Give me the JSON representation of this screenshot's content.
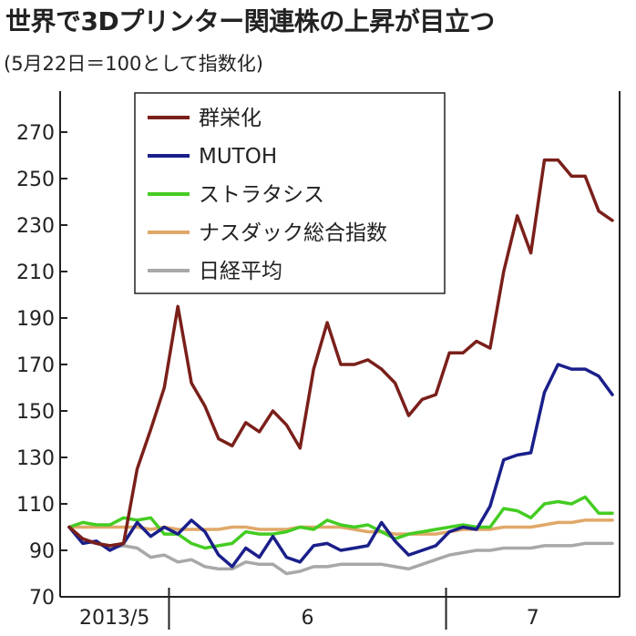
{
  "chart_data": {
    "type": "line",
    "title": "世界で3Dプリンター関連株の上昇が目立つ",
    "subtitle": "(5月22日＝100として指数化)",
    "xlabel": "",
    "ylabel": "",
    "ylim": [
      70,
      270
    ],
    "yticks": [
      70,
      90,
      110,
      130,
      150,
      170,
      190,
      210,
      230,
      250,
      270
    ],
    "x_period_labels": [
      "2013/5",
      "6",
      "7"
    ],
    "x_period_boundaries": [
      9,
      34
    ],
    "x_count": 50,
    "grid": false,
    "legend_position": "top-center",
    "series": [
      {
        "name": "群栄化",
        "color": "#7a1f1a",
        "values": [
          100,
          95,
          93,
          92,
          93,
          125,
          142,
          160,
          195,
          162,
          152,
          138,
          135,
          145,
          141,
          150,
          144,
          134,
          168,
          188,
          170,
          170,
          172,
          168,
          162,
          148,
          155,
          157,
          175,
          175,
          180,
          177,
          210,
          234,
          218,
          258,
          258,
          251,
          251,
          236,
          232
        ]
      },
      {
        "name": "MUTOH",
        "color": "#1a1f8a",
        "values": [
          100,
          93,
          94,
          90,
          93,
          102,
          96,
          100,
          97,
          103,
          98,
          88,
          83,
          91,
          87,
          96,
          87,
          85,
          92,
          93,
          90,
          91,
          92,
          102,
          94,
          88,
          90,
          92,
          98,
          100,
          99,
          109,
          129,
          131,
          132,
          158,
          170,
          168,
          168,
          165,
          157
        ]
      },
      {
        "name": "ストラタシス",
        "color": "#44cc22",
        "values": [
          100,
          102,
          101,
          101,
          104,
          103,
          104,
          97,
          97,
          93,
          91,
          92,
          93,
          98,
          97,
          97,
          98,
          100,
          99,
          103,
          101,
          100,
          101,
          98,
          95,
          97,
          98,
          99,
          100,
          101,
          100,
          100,
          108,
          107,
          104,
          110,
          111,
          110,
          113,
          106,
          106
        ]
      },
      {
        "name": "ナスダック総合指数",
        "color": "#e0a868",
        "values": [
          100,
          100,
          100,
          100,
          100,
          100,
          99,
          100,
          99,
          99,
          99,
          99,
          100,
          100,
          99,
          99,
          99,
          100,
          100,
          100,
          100,
          99,
          98,
          98,
          97,
          97,
          97,
          97,
          98,
          99,
          99,
          99,
          100,
          100,
          100,
          101,
          102,
          102,
          103,
          103,
          103
        ]
      },
      {
        "name": "日経平均",
        "color": "#a8a8a8",
        "values": [
          100,
          94,
          93,
          91,
          92,
          91,
          87,
          88,
          85,
          86,
          83,
          82,
          82,
          85,
          84,
          84,
          80,
          81,
          83,
          83,
          84,
          84,
          84,
          84,
          83,
          82,
          84,
          86,
          88,
          89,
          90,
          90,
          91,
          91,
          91,
          92,
          92,
          92,
          93,
          93,
          93
        ]
      }
    ]
  }
}
